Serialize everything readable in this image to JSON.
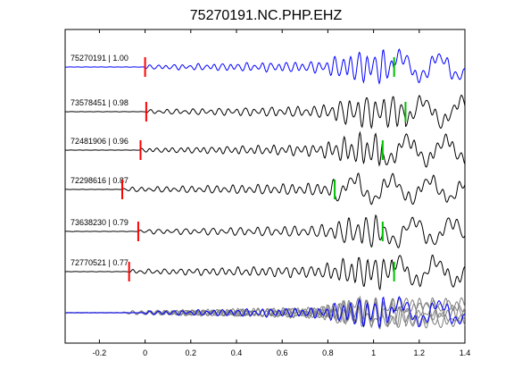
{
  "chart_data": {
    "type": "line",
    "title": "75270191.NC.PHP.EHZ",
    "xlabel": "",
    "ylabel": "",
    "xlim": [
      -0.35,
      1.4
    ],
    "x_ticks": [
      -0.2,
      0,
      0.2,
      0.4,
      0.6,
      0.8,
      1,
      1.2,
      1.4
    ],
    "x_tick_labels": [
      "-0.2",
      "0",
      "0.2",
      "0.4",
      "0.6",
      "0.8",
      "1",
      "1.2",
      "1.4"
    ],
    "grid": false,
    "traces": [
      {
        "event_id": "75270191",
        "correlation": "1.00",
        "label": "75270191 | 1.00",
        "color": "#0000ff",
        "p_pick": 0.0,
        "s_pick": 1.09
      },
      {
        "event_id": "73578451",
        "correlation": "0.98",
        "label": "73578451 | 0.98",
        "color": "#000000",
        "p_pick": 0.005,
        "s_pick": 1.14
      },
      {
        "event_id": "72481906",
        "correlation": "0.96",
        "label": "72481906 | 0.96",
        "color": "#000000",
        "p_pick": -0.02,
        "s_pick": 1.04
      },
      {
        "event_id": "72298616",
        "correlation": "0.87",
        "label": "72298616 | 0.87",
        "color": "#000000",
        "p_pick": -0.1,
        "s_pick": 0.83
      },
      {
        "event_id": "73638230",
        "correlation": "0.79",
        "label": "73638230 | 0.79",
        "color": "#000000",
        "p_pick": -0.03,
        "s_pick": 1.04
      },
      {
        "event_id": "72770521",
        "correlation": "0.77",
        "label": "72770521 | 0.77",
        "color": "#000000",
        "p_pick": -0.07,
        "s_pick": 1.09
      }
    ],
    "stack": {
      "color_primary": "#0000ff",
      "color_others": "#808080"
    },
    "p_pick_color": "#ff0000",
    "s_pick_color": "#00c000"
  }
}
